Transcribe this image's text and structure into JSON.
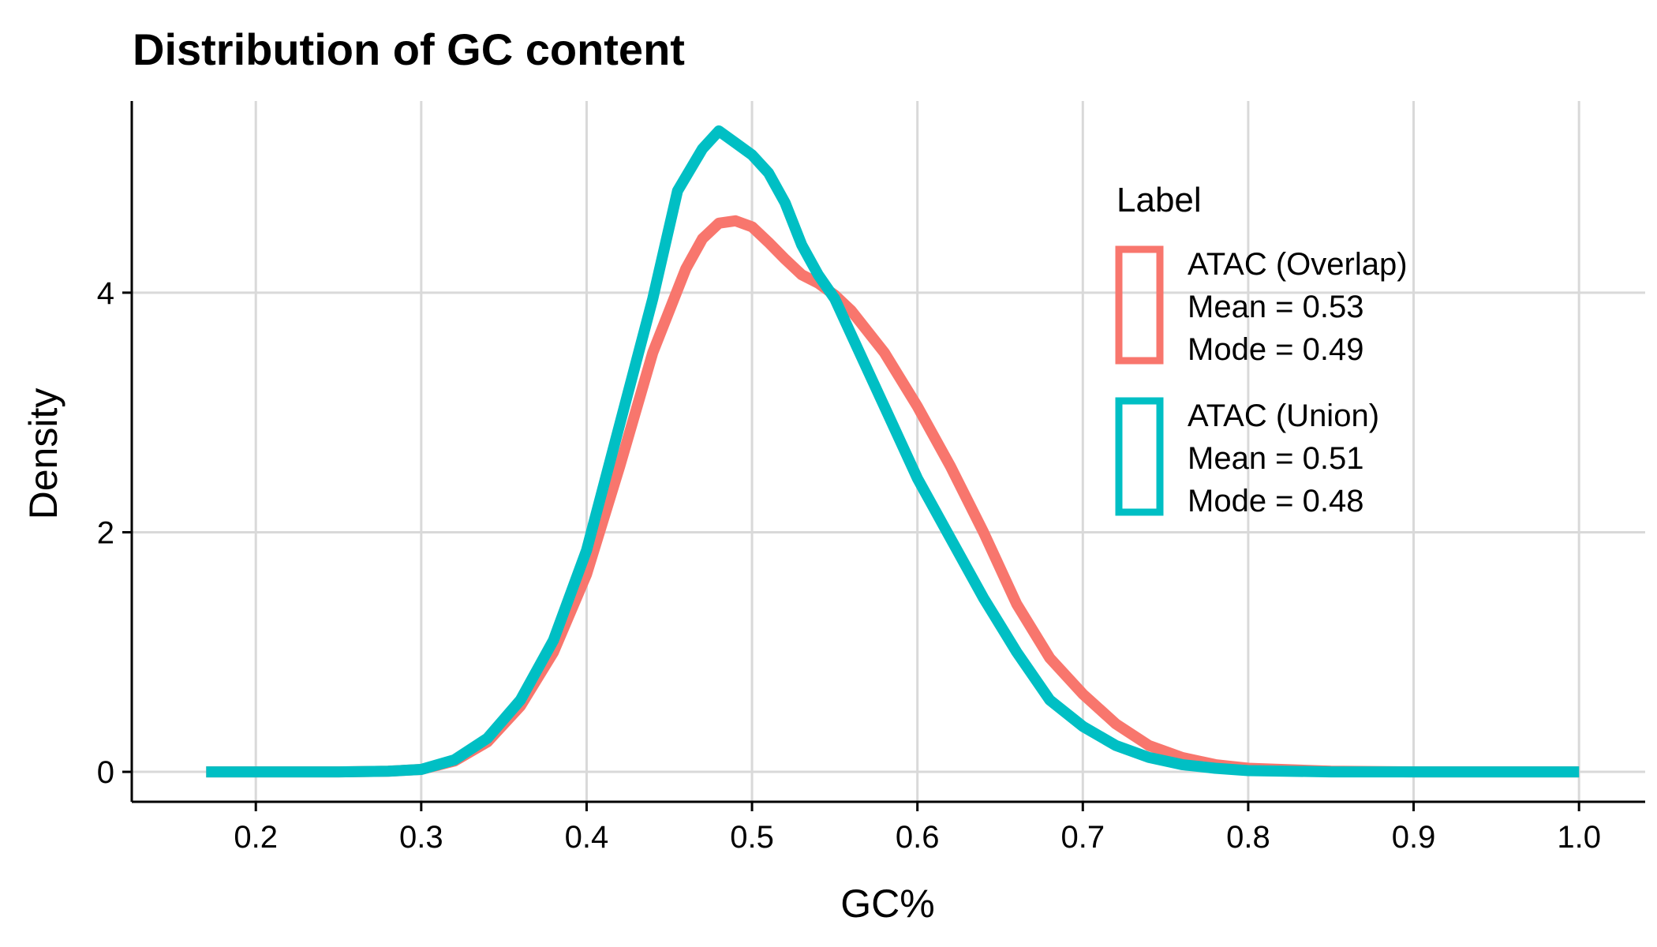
{
  "chart_data": {
    "type": "line",
    "title": "Distribution of GC content",
    "xlabel": "GC%",
    "ylabel": "Density",
    "xlim": [
      0.125,
      1.04
    ],
    "ylim": [
      -0.25,
      5.6
    ],
    "x_ticks": [
      0.2,
      0.3,
      0.4,
      0.5,
      0.6,
      0.7,
      0.8,
      0.9,
      1.0
    ],
    "x_tick_labels": [
      "0.2",
      "0.3",
      "0.4",
      "0.5",
      "0.6",
      "0.7",
      "0.8",
      "0.9",
      "1.0"
    ],
    "y_ticks": [
      0,
      2,
      4
    ],
    "y_tick_labels": [
      "0",
      "2",
      "4"
    ],
    "grid": true,
    "legend": {
      "title": "Label",
      "placement": "top-right"
    },
    "series": [
      {
        "name": "ATAC (Overlap)",
        "legend_lines": [
          "ATAC (Overlap)",
          "Mean = 0.53",
          "Mode = 0.49"
        ],
        "color": "#F8766D",
        "points": [
          [
            0.17,
            0.0
          ],
          [
            0.2,
            0.0
          ],
          [
            0.25,
            0.0
          ],
          [
            0.28,
            0.005
          ],
          [
            0.3,
            0.02
          ],
          [
            0.32,
            0.09
          ],
          [
            0.34,
            0.25
          ],
          [
            0.36,
            0.55
          ],
          [
            0.38,
            1.0
          ],
          [
            0.4,
            1.65
          ],
          [
            0.42,
            2.55
          ],
          [
            0.44,
            3.5
          ],
          [
            0.46,
            4.2
          ],
          [
            0.47,
            4.45
          ],
          [
            0.48,
            4.58
          ],
          [
            0.49,
            4.6
          ],
          [
            0.5,
            4.55
          ],
          [
            0.51,
            4.42
          ],
          [
            0.52,
            4.28
          ],
          [
            0.53,
            4.15
          ],
          [
            0.54,
            4.08
          ],
          [
            0.55,
            3.98
          ],
          [
            0.56,
            3.85
          ],
          [
            0.58,
            3.5
          ],
          [
            0.6,
            3.05
          ],
          [
            0.62,
            2.55
          ],
          [
            0.64,
            2.0
          ],
          [
            0.66,
            1.4
          ],
          [
            0.68,
            0.95
          ],
          [
            0.7,
            0.65
          ],
          [
            0.72,
            0.4
          ],
          [
            0.74,
            0.22
          ],
          [
            0.76,
            0.12
          ],
          [
            0.78,
            0.06
          ],
          [
            0.8,
            0.03
          ],
          [
            0.85,
            0.005
          ],
          [
            0.9,
            0.0
          ],
          [
            1.0,
            0.0
          ]
        ]
      },
      {
        "name": "ATAC (Union)",
        "legend_lines": [
          "ATAC (Union)",
          "Mean = 0.51",
          "Mode = 0.48"
        ],
        "color": "#00BFC4",
        "points": [
          [
            0.17,
            0.0
          ],
          [
            0.2,
            0.0
          ],
          [
            0.25,
            0.0
          ],
          [
            0.28,
            0.005
          ],
          [
            0.3,
            0.02
          ],
          [
            0.32,
            0.1
          ],
          [
            0.34,
            0.28
          ],
          [
            0.36,
            0.6
          ],
          [
            0.38,
            1.1
          ],
          [
            0.4,
            1.85
          ],
          [
            0.42,
            2.9
          ],
          [
            0.44,
            3.95
          ],
          [
            0.455,
            4.85
          ],
          [
            0.47,
            5.2
          ],
          [
            0.48,
            5.35
          ],
          [
            0.49,
            5.25
          ],
          [
            0.5,
            5.15
          ],
          [
            0.51,
            5.0
          ],
          [
            0.52,
            4.75
          ],
          [
            0.53,
            4.4
          ],
          [
            0.54,
            4.15
          ],
          [
            0.55,
            3.95
          ],
          [
            0.56,
            3.65
          ],
          [
            0.58,
            3.05
          ],
          [
            0.6,
            2.45
          ],
          [
            0.62,
            1.95
          ],
          [
            0.64,
            1.45
          ],
          [
            0.66,
            1.0
          ],
          [
            0.68,
            0.6
          ],
          [
            0.7,
            0.38
          ],
          [
            0.72,
            0.22
          ],
          [
            0.74,
            0.12
          ],
          [
            0.76,
            0.06
          ],
          [
            0.78,
            0.03
          ],
          [
            0.8,
            0.01
          ],
          [
            0.85,
            0.0
          ],
          [
            1.0,
            0.0
          ]
        ]
      }
    ]
  }
}
